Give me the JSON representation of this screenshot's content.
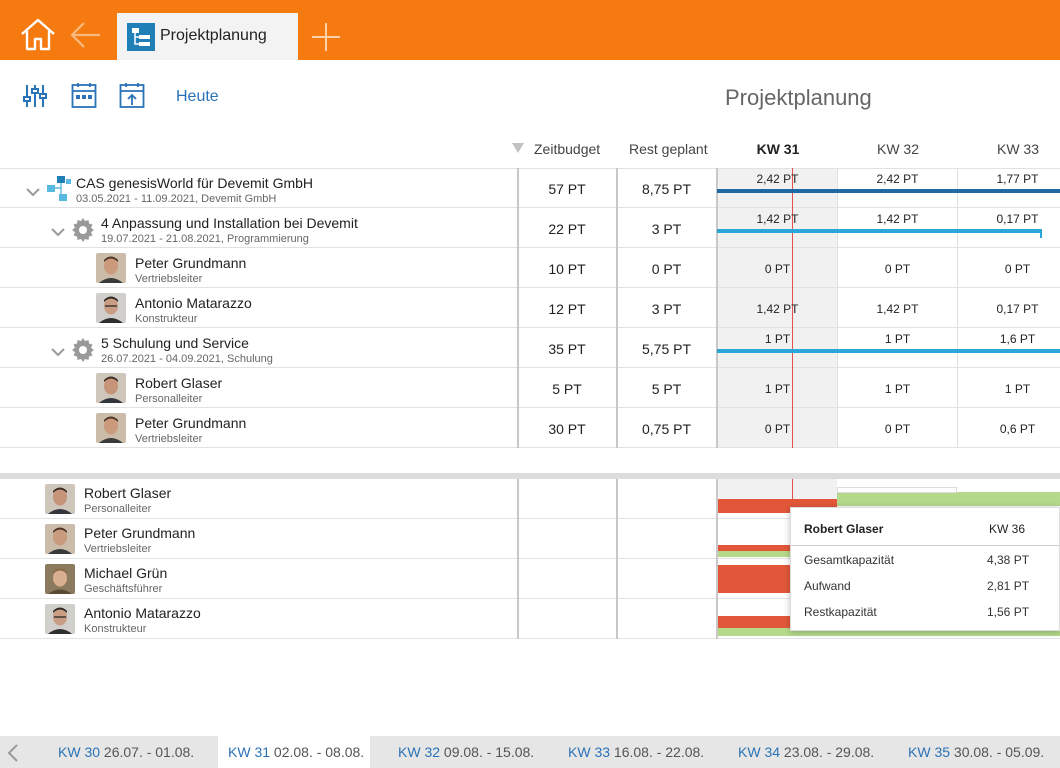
{
  "app": {
    "tab_label": "Projektplanung",
    "page_title": "Projektplanung",
    "accent_color": "#f57a0f"
  },
  "toolbar": {
    "today_label": "Heute",
    "icons": [
      "settings-sliders-icon",
      "calendar-week-icon",
      "export-icon"
    ]
  },
  "columns": {
    "zeitbudget": "Zeitbudget",
    "rest_geplant": "Rest geplant",
    "weeks": [
      "KW 31",
      "KW 32",
      "KW 33"
    ]
  },
  "rows": [
    {
      "title": "CAS genesisWorld für Devemit GmbH",
      "subtitle": "03.05.2021 - 11.09.2021, Devemit GmbH",
      "zeitbudget": "57 PT",
      "rest": "8,75 PT",
      "weeks": [
        "2,42 PT",
        "2,42 PT",
        "1,77 PT"
      ]
    },
    {
      "title": "4 Anpassung und Installation bei Devemit",
      "subtitle": "19.07.2021 - 21.08.2021, Programmierung",
      "zeitbudget": "22 PT",
      "rest": "3 PT",
      "weeks": [
        "1,42 PT",
        "1,42 PT",
        "0,17 PT"
      ]
    },
    {
      "title": "Peter Grundmann",
      "subtitle": "Vertriebsleiter",
      "zeitbudget": "10 PT",
      "rest": "0 PT",
      "weeks": [
        "0 PT",
        "0 PT",
        "0 PT"
      ]
    },
    {
      "title": "Antonio Matarazzo",
      "subtitle": "Konstrukteur",
      "zeitbudget": "12 PT",
      "rest": "3 PT",
      "weeks": [
        "1,42 PT",
        "1,42 PT",
        "0,17 PT"
      ]
    },
    {
      "title": "5 Schulung und Service",
      "subtitle": "26.07.2021 - 04.09.2021, Schulung",
      "zeitbudget": "35 PT",
      "rest": "5,75 PT",
      "weeks": [
        "1 PT",
        "1 PT",
        "1,6 PT"
      ]
    },
    {
      "title": "Robert Glaser",
      "subtitle": "Personalleiter",
      "zeitbudget": "5 PT",
      "rest": "5 PT",
      "weeks": [
        "1 PT",
        "1 PT",
        "1 PT"
      ]
    },
    {
      "title": "Peter Grundmann",
      "subtitle": "Vertriebsleiter",
      "zeitbudget": "30 PT",
      "rest": "0,75 PT",
      "weeks": [
        "0 PT",
        "0 PT",
        "0,6 PT"
      ]
    }
  ],
  "resources": [
    {
      "name": "Robert Glaser",
      "role": "Personalleiter"
    },
    {
      "name": "Peter Grundmann",
      "role": "Vertriebsleiter"
    },
    {
      "name": "Michael Grün",
      "role": "Geschäftsführer"
    },
    {
      "name": "Antonio Matarazzo",
      "role": "Konstrukteur"
    }
  ],
  "tooltip": {
    "name": "Robert Glaser",
    "week": "KW 36",
    "items": [
      {
        "label": "Gesamtkapazität",
        "value": "4,38 PT"
      },
      {
        "label": "Aufwand",
        "value": "2,81 PT"
      },
      {
        "label": "Restkapazität",
        "value": "1,56 PT"
      }
    ]
  },
  "weekbar": [
    {
      "kw": "KW 30",
      "range": "26.07. - 01.08."
    },
    {
      "kw": "KW 31",
      "range": "02.08. - 08.08."
    },
    {
      "kw": "KW 32",
      "range": "09.08. - 15.08."
    },
    {
      "kw": "KW 33",
      "range": "16.08. - 22.08."
    },
    {
      "kw": "KW 34",
      "range": "23.08. - 29.08."
    },
    {
      "kw": "KW 35",
      "range": "30.08. - 05.09."
    }
  ],
  "colors": {
    "bar_dark": "#1f6aa5",
    "bar_light": "#2aa6d8",
    "over": "#e2573a",
    "ok": "#b5d98a",
    "today_line": "#e35050"
  }
}
